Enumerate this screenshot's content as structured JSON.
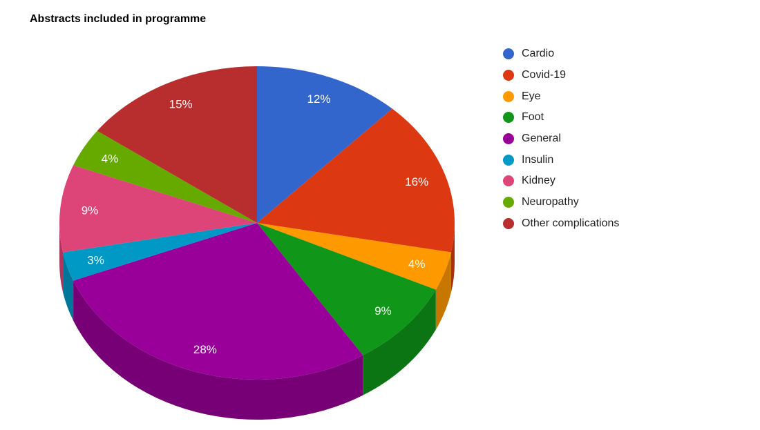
{
  "chart_data": {
    "type": "pie",
    "is3d": true,
    "title": "Abstracts included in programme",
    "legend_position": "right",
    "label_format": "percent",
    "direction": "clockwise",
    "start_angle_deg": 0,
    "categories": [
      "Cardio",
      "Covid-19",
      "Eye",
      "Foot",
      "General",
      "Insulin",
      "Kidney",
      "Neuropathy",
      "Other complications"
    ],
    "values": [
      12,
      16,
      4,
      9,
      28,
      3,
      9,
      4,
      15
    ],
    "slice_labels": [
      "12%",
      "16%",
      "4%",
      "9%",
      "28%",
      "3%",
      "9%",
      "4%",
      "15%"
    ],
    "colors": [
      "#3366cc",
      "#dc3912",
      "#ff9900",
      "#109618",
      "#990099",
      "#0099c6",
      "#dd4477",
      "#66aa00",
      "#b82e2e"
    ]
  },
  "styles": {
    "background": "#ffffff",
    "title_color": "#000000",
    "slice_label_color": "#ffffff",
    "legend_text_color": "#222222"
  }
}
